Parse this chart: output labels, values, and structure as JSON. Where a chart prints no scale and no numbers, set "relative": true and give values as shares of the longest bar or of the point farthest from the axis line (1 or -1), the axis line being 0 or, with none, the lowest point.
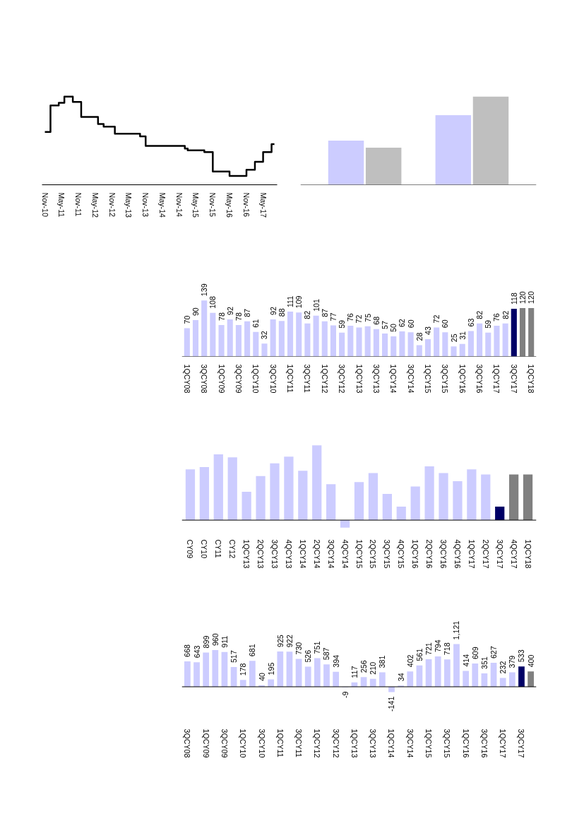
{
  "chart_data": [
    {
      "type": "step",
      "relative": true,
      "x": [
        "2010-11",
        "2011-01",
        "2011-04",
        "2011-06",
        "2011-09",
        "2011-12",
        "2012-06",
        "2012-08",
        "2012-12",
        "2013-09",
        "2013-11",
        "2015-01",
        "2015-02",
        "2015-08",
        "2015-11",
        "2016-05",
        "2016-11",
        "2017-02",
        "2017-05",
        "2017-08",
        "2017-09"
      ],
      "series": [
        {
          "color": "#000000",
          "values": [
            0.6,
            0.9,
            0.93,
            1,
            0.94,
            0.77,
            0.69,
            0.66,
            0.58,
            0.55,
            0.44,
            0.41,
            0.39,
            0.37,
            0.15,
            0.1,
            0.17,
            0.26,
            0.37,
            0.46,
            0.46
          ]
        }
      ],
      "xlim": [
        "2010-10",
        "2017-10"
      ],
      "xticks": [
        {
          "value": "2010-11",
          "label": "Nov-10"
        },
        {
          "value": "2011-05",
          "label": "May-11"
        },
        {
          "value": "2011-11",
          "label": "Nov-11"
        },
        {
          "value": "2012-05",
          "label": "May-12"
        },
        {
          "value": "2012-11",
          "label": "Nov-12"
        },
        {
          "value": "2013-05",
          "label": "May-13"
        },
        {
          "value": "2013-11",
          "label": "Nov-13"
        },
        {
          "value": "2014-05",
          "label": "May-14"
        },
        {
          "value": "2014-11",
          "label": "Nov-14"
        },
        {
          "value": "2015-05",
          "label": "May-15"
        },
        {
          "value": "2015-11",
          "label": "Nov-15"
        },
        {
          "value": "2016-05",
          "label": "May-16"
        },
        {
          "value": "2016-11",
          "label": "Nov-16"
        },
        {
          "value": "2017-05",
          "label": "May-17"
        }
      ]
    },
    {
      "type": "bar",
      "relative": true,
      "categories": [
        null,
        null
      ],
      "series": [
        {
          "color": "#ccccff",
          "values": [
            0.5,
            0.79
          ]
        },
        {
          "color": "#bfbfbf",
          "values": [
            0.42,
            1
          ]
        }
      ]
    },
    {
      "type": "bar",
      "data_labels": true,
      "tick_labels": "x",
      "categories": [
        "1QCY08",
        null,
        "3QCY08",
        null,
        "1QCY09",
        null,
        "3QCY09",
        null,
        "1QCY10",
        null,
        "3QCY10",
        null,
        "1QCY11",
        null,
        "3QCY11",
        null,
        "1QCY12",
        null,
        "3QCY12",
        null,
        "1QCY13",
        null,
        "3QCY13",
        null,
        "1QCY14",
        null,
        "3QCY14",
        null,
        "1QCY15",
        null,
        "3QCY15",
        null,
        "1QCY16",
        null,
        "3QCY16",
        null,
        "1QCY17",
        null,
        "3QCY17",
        null,
        "1QCY18"
      ],
      "values": [
        70,
        90,
        139,
        108,
        78,
        92,
        78,
        87,
        61,
        32,
        92,
        88,
        111,
        109,
        82,
        101,
        87,
        77,
        59,
        76,
        72,
        75,
        68,
        57,
        50,
        62,
        60,
        28,
        43,
        72,
        60,
        25,
        31,
        63,
        82,
        59,
        76,
        82,
        118,
        120,
        120
      ],
      "colors": [
        "#ccccff",
        "#ccccff",
        "#ccccff",
        "#ccccff",
        "#ccccff",
        "#ccccff",
        "#ccccff",
        "#ccccff",
        "#ccccff",
        "#ccccff",
        "#ccccff",
        "#ccccff",
        "#ccccff",
        "#ccccff",
        "#ccccff",
        "#ccccff",
        "#ccccff",
        "#ccccff",
        "#ccccff",
        "#ccccff",
        "#ccccff",
        "#ccccff",
        "#ccccff",
        "#ccccff",
        "#ccccff",
        "#ccccff",
        "#ccccff",
        "#ccccff",
        "#ccccff",
        "#ccccff",
        "#ccccff",
        "#ccccff",
        "#ccccff",
        "#ccccff",
        "#ccccff",
        "#ccccff",
        "#ccccff",
        "#ccccff",
        "#000066",
        "#808080",
        "#808080"
      ]
    },
    {
      "type": "bar",
      "relative": true,
      "categories": [
        "CY09",
        "CY10",
        "CY11",
        "CY12",
        "1QCY13",
        "2QCY13",
        "3QCY13",
        "4QCY13",
        "1QCY14",
        "2QCY14",
        "3QCY14",
        "4QCY14",
        "1QCY15",
        "2QCY15",
        "3QCY15",
        "4QCY15",
        "1QCY16",
        "2QCY16",
        "3QCY16",
        "4QCY16",
        "1QCY17",
        "2QCY17",
        "3QCY17",
        "4QCY17",
        "1QCY18"
      ],
      "values": [
        0.68,
        0.71,
        0.88,
        0.84,
        0.38,
        0.59,
        0.76,
        0.85,
        0.66,
        1,
        0.48,
        -0.1,
        0.51,
        0.63,
        0.35,
        0.18,
        0.45,
        0.72,
        0.63,
        0.52,
        0.68,
        0.61,
        0.18,
        0.61,
        0.61
      ],
      "colors": [
        "#ccccff",
        "#ccccff",
        "#ccccff",
        "#ccccff",
        "#ccccff",
        "#ccccff",
        "#ccccff",
        "#ccccff",
        "#ccccff",
        "#ccccff",
        "#ccccff",
        "#ccccff",
        "#ccccff",
        "#ccccff",
        "#ccccff",
        "#ccccff",
        "#ccccff",
        "#ccccff",
        "#ccccff",
        "#ccccff",
        "#ccccff",
        "#ccccff",
        "#000066",
        "#808080",
        "#808080"
      ]
    },
    {
      "type": "bar",
      "tick_labels": "x",
      "categories": [
        "3QCY08",
        null,
        "1QCY09",
        null,
        "3QCY09",
        null,
        "1QCY10",
        null,
        "3QCY10",
        null,
        "1QCY11",
        null,
        "3QCY11",
        null,
        "1QCY12",
        null,
        "3QCY12",
        null,
        "1QCY13",
        null,
        "3QCY13",
        null,
        "1QCY14",
        null,
        "3QCY14",
        null,
        "1QCY15",
        null,
        "3QCY15",
        null,
        "1QCY16",
        null,
        "3QCY16",
        null,
        "1QCY17",
        null,
        "3QCY17",
        null
      ],
      "values": [
        668,
        643,
        899,
        960,
        911,
        517,
        178,
        681,
        40,
        195,
        925,
        922,
        730,
        526,
        751,
        587,
        394,
        -9,
        117,
        256,
        210,
        381,
        -141,
        34,
        402,
        561,
        721,
        794,
        718,
        1121,
        414,
        609,
        351,
        627,
        232,
        379,
        533,
        400
      ],
      "value_labels": [
        "668",
        "643",
        "899",
        "960",
        "911",
        "517",
        "178",
        "681",
        "40",
        "195",
        "925",
        "922",
        "730",
        "526",
        "751",
        "587",
        "394",
        "-9",
        "117",
        "256",
        "210",
        "381",
        "-141",
        "34",
        "402",
        "561",
        "721",
        "794",
        "718",
        "1,121",
        "414",
        "609",
        "351",
        "627",
        "232",
        "379",
        "533",
        "400"
      ],
      "colors": [
        "#ccccff",
        "#ccccff",
        "#ccccff",
        "#ccccff",
        "#ccccff",
        "#ccccff",
        "#ccccff",
        "#ccccff",
        "#ccccff",
        "#ccccff",
        "#ccccff",
        "#ccccff",
        "#ccccff",
        "#ccccff",
        "#ccccff",
        "#ccccff",
        "#ccccff",
        "#ccccff",
        "#ccccff",
        "#ccccff",
        "#ccccff",
        "#ccccff",
        "#ccccff",
        "#ccccff",
        "#ccccff",
        "#ccccff",
        "#ccccff",
        "#ccccff",
        "#ccccff",
        "#ccccff",
        "#ccccff",
        "#ccccff",
        "#ccccff",
        "#ccccff",
        "#ccccff",
        "#ccccff",
        "#000066",
        "#808080"
      ]
    }
  ]
}
